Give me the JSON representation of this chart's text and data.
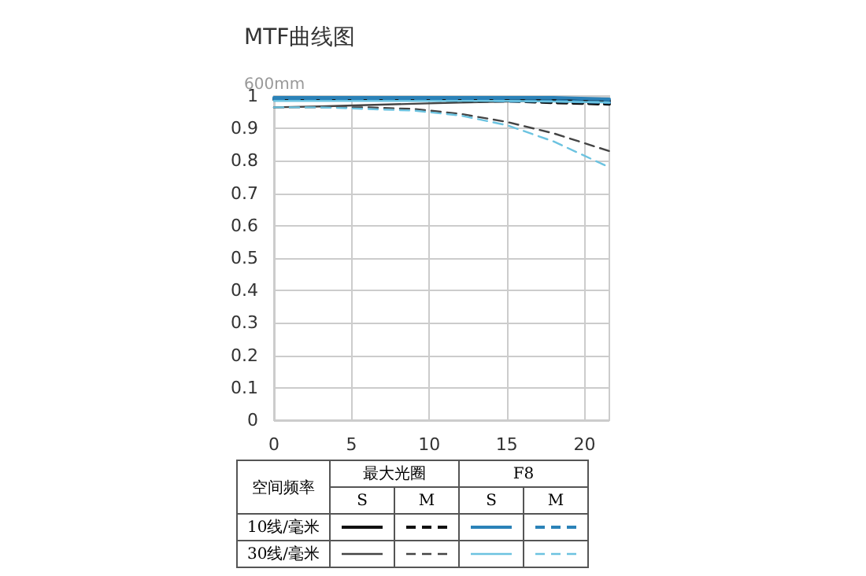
{
  "chart_data": {
    "type": "line",
    "title": "MTF曲线图",
    "ylabel": "600mm",
    "legend_title": "空间频率",
    "annotations": [
      "最大光圈",
      "F8",
      "S",
      "M",
      "S",
      "M",
      "10线/毫米",
      "30线/毫米"
    ],
    "x": [
      0,
      3,
      6,
      9,
      12,
      15,
      18,
      21.6
    ],
    "xlim": [
      0,
      21.6
    ],
    "xticks": [
      0,
      5,
      10,
      15,
      20
    ],
    "ylim": [
      0,
      1
    ],
    "yticks": [
      0,
      {
        "value": 0.1,
        "label": "0.1"
      },
      {
        "value": 0.2,
        "label": "0.2"
      },
      {
        "value": 0.3,
        "label": "0.3"
      },
      {
        "value": 0.4,
        "label": "0.4"
      },
      {
        "value": 0.5,
        "label": "0.5"
      },
      {
        "value": 0.6,
        "label": "0.6"
      },
      {
        "value": 0.7,
        "label": "0.7"
      },
      {
        "value": 0.8,
        "label": "0.8"
      },
      {
        "value": 0.9,
        "label": "0.9"
      },
      1
    ],
    "grid": true,
    "marker": "none",
    "series": [
      {
        "color": "#111111",
        "line_style": "solid",
        "values": [
          0.99,
          0.99,
          0.99,
          0.99,
          0.99,
          0.99,
          0.99,
          0.985
        ]
      },
      {
        "color": "#111111",
        "line_style": "dashed",
        "values": [
          0.99,
          0.99,
          0.99,
          0.99,
          0.985,
          0.985,
          0.98,
          0.975
        ]
      },
      {
        "color": "#2b82b8",
        "line_style": "solid",
        "values": [
          0.995,
          0.995,
          0.995,
          0.995,
          0.995,
          0.995,
          0.995,
          0.99
        ]
      },
      {
        "color": "#2b82b8",
        "line_style": "dashed",
        "values": [
          0.99,
          0.99,
          0.99,
          0.99,
          0.99,
          0.985,
          0.985,
          0.98
        ]
      },
      {
        "color": "#444444",
        "line_style": "solid",
        "values": [
          0.965,
          0.968,
          0.972,
          0.976,
          0.98,
          0.983,
          0.985,
          0.985
        ]
      },
      {
        "color": "#444444",
        "line_style": "dashed",
        "values": [
          0.965,
          0.965,
          0.965,
          0.96,
          0.945,
          0.92,
          0.885,
          0.83
        ]
      },
      {
        "color": "#6cc3e0",
        "line_style": "solid",
        "values": [
          0.985,
          0.985,
          0.985,
          0.985,
          0.985,
          0.985,
          0.983,
          0.98
        ]
      },
      {
        "color": "#6cc3e0",
        "line_style": "dashed",
        "values": [
          0.965,
          0.965,
          0.96,
          0.955,
          0.94,
          0.91,
          0.86,
          0.78
        ]
      }
    ]
  }
}
